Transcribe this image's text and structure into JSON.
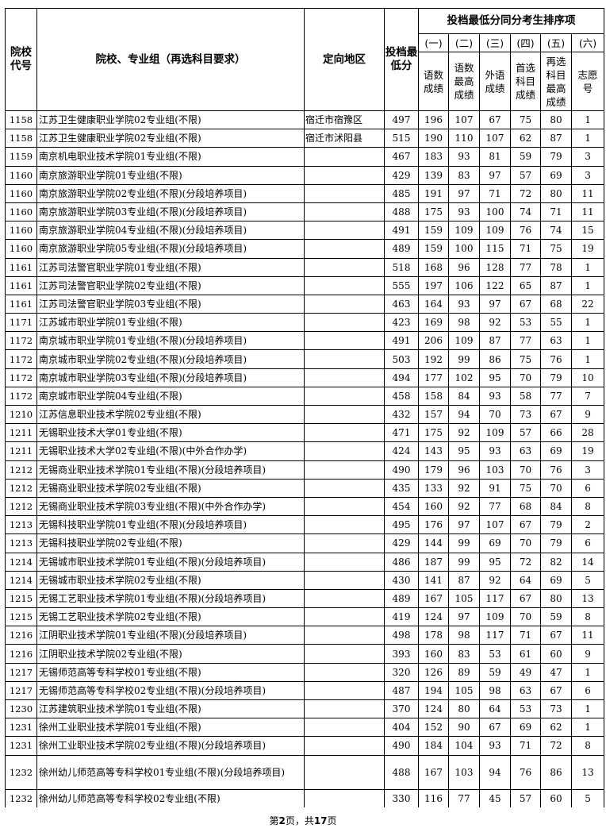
{
  "header": {
    "code": "院校代号",
    "name": "院校、专业组（再选科目要求）",
    "region": "定向地区",
    "min_score": "投档最低分",
    "sort_group": "投档最低分同分考生排序项",
    "sort_items": [
      {
        "num": "(一)",
        "label": "语数成绩"
      },
      {
        "num": "(二)",
        "label": "语数最高成绩"
      },
      {
        "num": "(三)",
        "label": "外语成绩"
      },
      {
        "num": "(四)",
        "label": "首选科目成绩"
      },
      {
        "num": "(五)",
        "label": "再选科目最高成绩"
      },
      {
        "num": "(六)",
        "label": "志愿号"
      }
    ]
  },
  "rows": [
    [
      "1158",
      "江苏卫生健康职业学院02专业组(不限)",
      "宿迁市宿豫区",
      "497",
      "196",
      "107",
      "67",
      "75",
      "80",
      "1"
    ],
    [
      "1158",
      "江苏卫生健康职业学院02专业组(不限)",
      "宿迁市沭阳县",
      "515",
      "190",
      "110",
      "107",
      "62",
      "87",
      "1"
    ],
    [
      "1159",
      "南京机电职业技术学院01专业组(不限)",
      "",
      "467",
      "183",
      "93",
      "81",
      "59",
      "79",
      "3"
    ],
    [
      "1160",
      "南京旅游职业学院01专业组(不限)",
      "",
      "429",
      "139",
      "83",
      "97",
      "57",
      "69",
      "3"
    ],
    [
      "1160",
      "南京旅游职业学院02专业组(不限)(分段培养项目)",
      "",
      "485",
      "191",
      "97",
      "71",
      "72",
      "80",
      "11"
    ],
    [
      "1160",
      "南京旅游职业学院03专业组(不限)(分段培养项目)",
      "",
      "488",
      "175",
      "93",
      "100",
      "74",
      "71",
      "11"
    ],
    [
      "1160",
      "南京旅游职业学院04专业组(不限)(分段培养项目)",
      "",
      "491",
      "159",
      "109",
      "109",
      "76",
      "74",
      "15"
    ],
    [
      "1160",
      "南京旅游职业学院05专业组(不限)(分段培养项目)",
      "",
      "489",
      "159",
      "100",
      "115",
      "71",
      "75",
      "19"
    ],
    [
      "1161",
      "江苏司法警官职业学院01专业组(不限)",
      "",
      "518",
      "168",
      "96",
      "128",
      "77",
      "78",
      "1"
    ],
    [
      "1161",
      "江苏司法警官职业学院02专业组(不限)",
      "",
      "555",
      "197",
      "106",
      "122",
      "65",
      "87",
      "1"
    ],
    [
      "1161",
      "江苏司法警官职业学院03专业组(不限)",
      "",
      "463",
      "164",
      "93",
      "97",
      "67",
      "68",
      "22"
    ],
    [
      "1171",
      "江苏城市职业学院01专业组(不限)",
      "",
      "423",
      "169",
      "98",
      "92",
      "53",
      "55",
      "1"
    ],
    [
      "1172",
      "南京城市职业学院01专业组(不限)(分段培养项目)",
      "",
      "491",
      "206",
      "109",
      "87",
      "77",
      "63",
      "1"
    ],
    [
      "1172",
      "南京城市职业学院02专业组(不限)(分段培养项目)",
      "",
      "503",
      "192",
      "99",
      "86",
      "75",
      "76",
      "1"
    ],
    [
      "1172",
      "南京城市职业学院03专业组(不限)(分段培养项目)",
      "",
      "494",
      "177",
      "102",
      "95",
      "70",
      "79",
      "10"
    ],
    [
      "1172",
      "南京城市职业学院04专业组(不限)",
      "",
      "458",
      "158",
      "84",
      "93",
      "58",
      "77",
      "7"
    ],
    [
      "1210",
      "江苏信息职业技术学院02专业组(不限)",
      "",
      "432",
      "157",
      "94",
      "70",
      "73",
      "67",
      "9"
    ],
    [
      "1211",
      "无锡职业技术大学01专业组(不限)",
      "",
      "471",
      "175",
      "92",
      "109",
      "57",
      "66",
      "28"
    ],
    [
      "1211",
      "无锡职业技术大学02专业组(不限)(中外合作办学)",
      "",
      "424",
      "143",
      "95",
      "93",
      "63",
      "69",
      "19"
    ],
    [
      "1212",
      "无锡商业职业技术学院01专业组(不限)(分段培养项目)",
      "",
      "490",
      "179",
      "96",
      "103",
      "70",
      "76",
      "3"
    ],
    [
      "1212",
      "无锡商业职业技术学院02专业组(不限)",
      "",
      "435",
      "133",
      "92",
      "91",
      "75",
      "70",
      "6"
    ],
    [
      "1212",
      "无锡商业职业技术学院03专业组(不限)(中外合作办学)",
      "",
      "454",
      "160",
      "92",
      "77",
      "68",
      "84",
      "8"
    ],
    [
      "1213",
      "无锡科技职业学院01专业组(不限)(分段培养项目)",
      "",
      "495",
      "176",
      "97",
      "107",
      "67",
      "79",
      "2"
    ],
    [
      "1213",
      "无锡科技职业学院02专业组(不限)",
      "",
      "429",
      "144",
      "99",
      "69",
      "70",
      "79",
      "6"
    ],
    [
      "1214",
      "无锡城市职业技术学院01专业组(不限)(分段培养项目)",
      "",
      "486",
      "187",
      "99",
      "95",
      "72",
      "82",
      "14"
    ],
    [
      "1214",
      "无锡城市职业技术学院02专业组(不限)",
      "",
      "430",
      "141",
      "87",
      "92",
      "64",
      "69",
      "5"
    ],
    [
      "1215",
      "无锡工艺职业技术学院01专业组(不限)(分段培养项目)",
      "",
      "489",
      "167",
      "105",
      "117",
      "67",
      "80",
      "13"
    ],
    [
      "1215",
      "无锡工艺职业技术学院02专业组(不限)",
      "",
      "419",
      "124",
      "97",
      "109",
      "70",
      "59",
      "8"
    ],
    [
      "1216",
      "江阴职业技术学院01专业组(不限)(分段培养项目)",
      "",
      "498",
      "178",
      "98",
      "117",
      "71",
      "67",
      "11"
    ],
    [
      "1216",
      "江阴职业技术学院02专业组(不限)",
      "",
      "393",
      "160",
      "83",
      "53",
      "61",
      "60",
      "9"
    ],
    [
      "1217",
      "无锡师范高等专科学校01专业组(不限)",
      "",
      "320",
      "126",
      "89",
      "59",
      "49",
      "47",
      "1"
    ],
    [
      "1217",
      "无锡师范高等专科学校02专业组(不限)(分段培养项目)",
      "",
      "487",
      "194",
      "105",
      "98",
      "63",
      "67",
      "6"
    ],
    [
      "1230",
      "江苏建筑职业技术学院01专业组(不限)",
      "",
      "370",
      "124",
      "80",
      "64",
      "53",
      "73",
      "1"
    ],
    [
      "1231",
      "徐州工业职业技术学院01专业组(不限)",
      "",
      "404",
      "152",
      "90",
      "67",
      "69",
      "62",
      "1"
    ],
    [
      "1231",
      "徐州工业职业技术学院02专业组(不限)(分段培养项目)",
      "",
      "490",
      "184",
      "104",
      "93",
      "71",
      "72",
      "8"
    ],
    [
      "1232",
      "徐州幼儿师范高等专科学校01专业组(不限)(分段培养项目)",
      "",
      "488",
      "167",
      "103",
      "94",
      "76",
      "86",
      "13"
    ],
    [
      "1232",
      "徐州幼儿师范高等专科学校02专业组(不限)",
      "",
      "330",
      "116",
      "77",
      "45",
      "57",
      "60",
      "5"
    ]
  ],
  "footer": {
    "prefix": "第",
    "page": "2",
    "middle": "页，共",
    "total": "17",
    "suffix": "页"
  }
}
